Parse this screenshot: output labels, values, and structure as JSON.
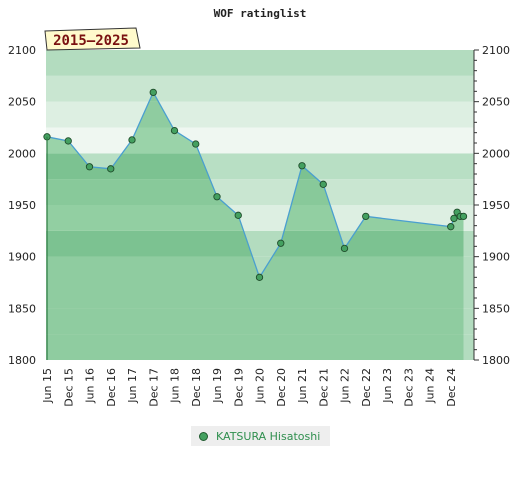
{
  "chart_data": {
    "type": "line",
    "title": "WOF ratinglist",
    "period_label": "2015–2025",
    "ylim": [
      1800,
      2100
    ],
    "yticks": [
      1800,
      1850,
      1900,
      1950,
      2000,
      2050,
      2100
    ],
    "ytick_labels": [
      "1800",
      "1850",
      "1900",
      "1950",
      "2000",
      "2050",
      "2100"
    ],
    "categories": [
      "Jun 15",
      "Dec 15",
      "Jun 16",
      "Dec 16",
      "Jun 17",
      "Dec 17",
      "Jun 18",
      "Dec 18",
      "Jun 19",
      "Dec 19",
      "Jun 20",
      "Dec 20",
      "Jun 21",
      "Dec 21",
      "Jun 22",
      "Dec 22",
      "Jun 23",
      "Dec 23",
      "Jun 24",
      "Dec 24"
    ],
    "grid": true,
    "legend_position": "bottom",
    "series": [
      {
        "name": "KATSURA Hisatoshi",
        "color": "#44a060",
        "line_color": "#4a9fd0",
        "points": [
          {
            "x": 0,
            "y": 2016
          },
          {
            "x": 1,
            "y": 2012
          },
          {
            "x": 2,
            "y": 1987
          },
          {
            "x": 3,
            "y": 1985
          },
          {
            "x": 4,
            "y": 2013
          },
          {
            "x": 5,
            "y": 2059
          },
          {
            "x": 6,
            "y": 2022
          },
          {
            "x": 7,
            "y": 2009
          },
          {
            "x": 8,
            "y": 1958
          },
          {
            "x": 9,
            "y": 1940
          },
          {
            "x": 10,
            "y": 1880
          },
          {
            "x": 11,
            "y": 1913
          },
          {
            "x": 12,
            "y": 1988
          },
          {
            "x": 13,
            "y": 1970
          },
          {
            "x": 14,
            "y": 1908
          },
          {
            "x": 15,
            "y": 1939
          },
          {
            "x": 19,
            "y": 1929
          },
          {
            "x": 19.15,
            "y": 1937
          },
          {
            "x": 19.3,
            "y": 1943
          },
          {
            "x": 19.45,
            "y": 1939
          },
          {
            "x": 19.6,
            "y": 1939
          }
        ]
      }
    ]
  }
}
